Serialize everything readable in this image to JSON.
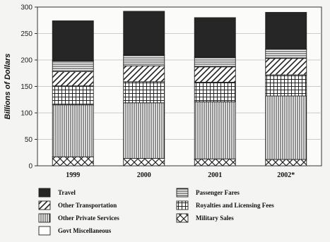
{
  "chart_data": {
    "type": "bar",
    "stacked": true,
    "title": "",
    "xlabel": "",
    "ylabel": "Billions of Dollars",
    "ylim": [
      0,
      300
    ],
    "yticks": [
      0,
      50,
      100,
      150,
      200,
      250,
      300
    ],
    "grid": true,
    "legend_position": "bottom",
    "categories": [
      "1999",
      "2000",
      "2001",
      "2002*"
    ],
    "series": [
      {
        "name": "Military Sales",
        "values": [
          17,
          14,
          13,
          12
        ],
        "pattern": "cross-hatch"
      },
      {
        "name": "Other Private Services",
        "values": [
          98,
          105,
          108,
          120
        ],
        "pattern": "vertical-lines"
      },
      {
        "name": "Royalties and Licensing Fees",
        "values": [
          36,
          40,
          37,
          40
        ],
        "pattern": "grid"
      },
      {
        "name": "Other Transportation",
        "values": [
          27,
          30,
          29,
          31
        ],
        "pattern": "diagonal"
      },
      {
        "name": "Passenger Fares",
        "values": [
          20,
          20,
          18,
          17
        ],
        "pattern": "horizontal-lines"
      },
      {
        "name": "Govt Miscellaneous",
        "values": [
          1,
          1,
          1,
          1
        ],
        "pattern": "blank"
      },
      {
        "name": "Travel",
        "values": [
          75,
          82,
          74,
          69
        ],
        "pattern": "solid-dark"
      }
    ],
    "legend_order": [
      "Travel",
      "Passenger Fares",
      "Other Transportation",
      "Royalties and Licensing Fees",
      "Other Private Services",
      "Military Sales",
      "Govt Miscellaneous"
    ],
    "colors": {
      "ink": "#1a1a1a",
      "grid": "#bbbbbb",
      "background": "#f4f4f2"
    }
  }
}
